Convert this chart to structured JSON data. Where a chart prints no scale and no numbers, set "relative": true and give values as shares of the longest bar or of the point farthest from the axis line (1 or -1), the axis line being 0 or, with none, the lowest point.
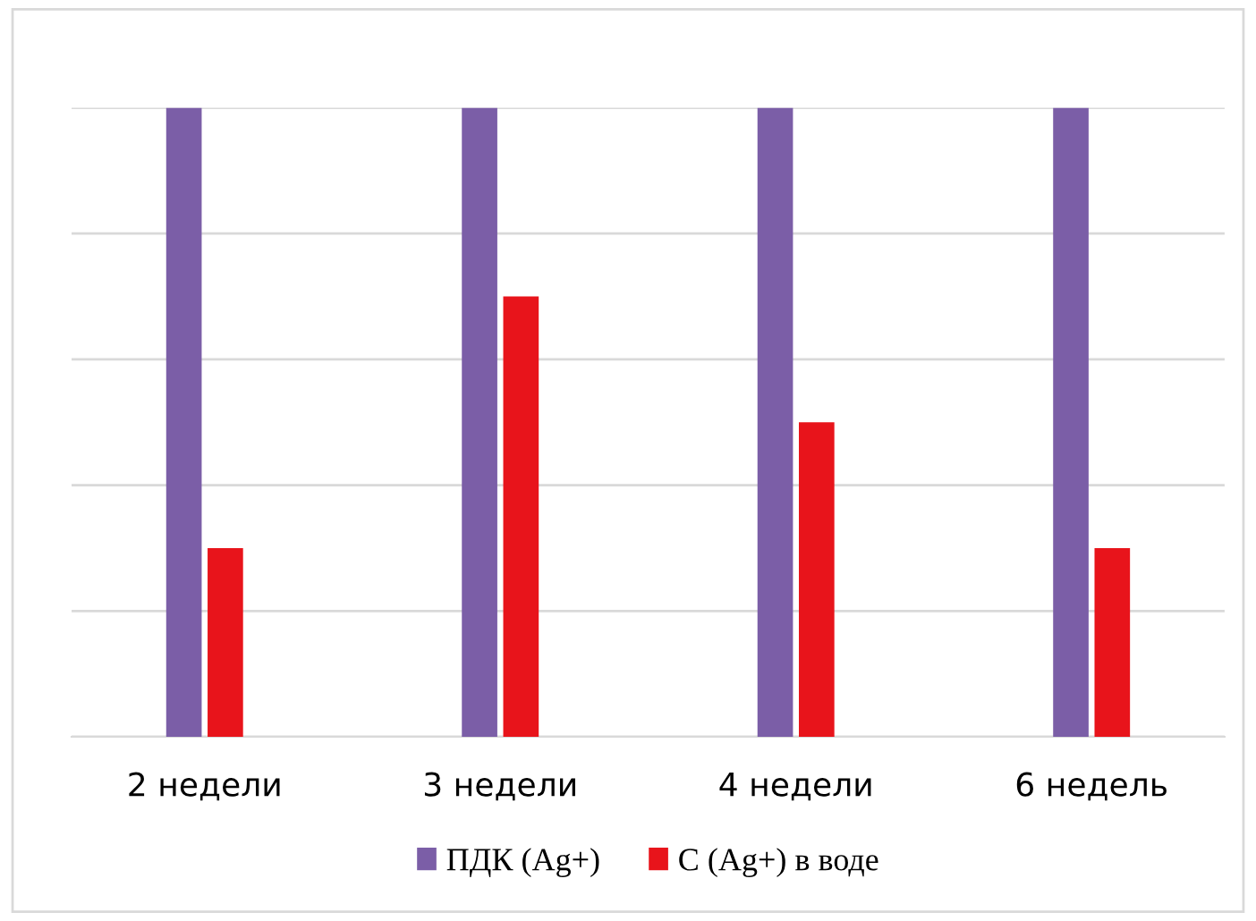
{
  "chart_data": {
    "type": "bar",
    "relative": true,
    "categories": [
      "2 недели",
      "3 недели",
      "4 недели",
      "6 недель"
    ],
    "series": [
      {
        "name": "ПДК (Ag+)",
        "color": "#7b5ea7",
        "values": [
          1,
          1,
          1,
          1
        ]
      },
      {
        "name": "С (Ag+) в воде",
        "color": "#e8141b",
        "values": [
          0.3,
          0.7,
          0.5,
          0.3
        ]
      }
    ],
    "grid": "y",
    "legend": "bottom"
  }
}
